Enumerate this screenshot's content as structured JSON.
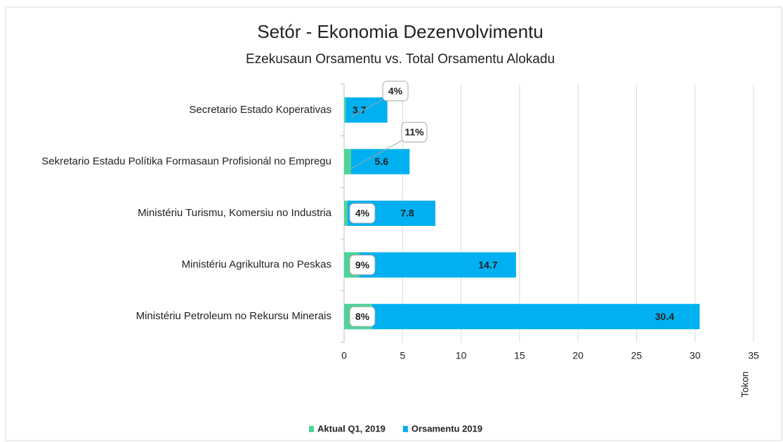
{
  "chart_data": {
    "type": "bar",
    "orientation": "horizontal",
    "title": "Setór - Ekonomia Dezenvolvimentu",
    "subtitle": "Ezekusaun Orsamentu vs. Total Orsamentu Alokadu",
    "x_label": "Tokon",
    "categories": [
      "Secretario Estado Koperativas",
      "Sekretario Estadu Polítika Formasaun Profisionál no Empregu",
      "Ministériu Turismu, Komersiu no Industria",
      "Ministériu Agrikultura no Peskas",
      "Ministériu Petroleum no Rekursu Minerais"
    ],
    "series": [
      {
        "name": "Aktual Q1, 2019",
        "color": "#4fd39b",
        "values": [
          0.15,
          0.6,
          0.3,
          1.3,
          2.4
        ]
      },
      {
        "name": "Orsamentu 2019",
        "color": "#00b0f0",
        "values": [
          3.7,
          5.6,
          7.8,
          14.7,
          30.4
        ]
      }
    ],
    "percent_labels": [
      "4%",
      "11%",
      "4%",
      "9%",
      "8%"
    ],
    "xlim": [
      0,
      35
    ],
    "xticks": [
      0,
      5,
      10,
      15,
      20,
      25,
      30,
      35
    ],
    "grid": true,
    "legend": "bottom"
  }
}
